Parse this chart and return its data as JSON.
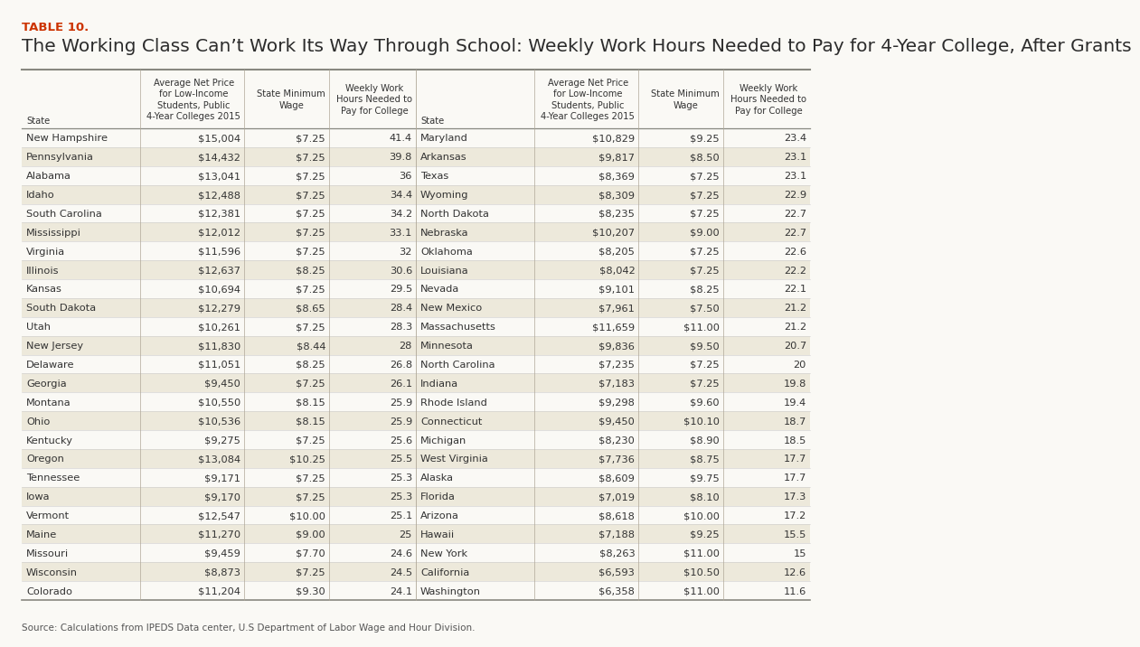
{
  "table_label": "TABLE 10.",
  "title": "The Working Class Can’t Work Its Way Through School: Weekly Work Hours Needed to Pay for 4-Year College, After Grants",
  "source": "Source: Calculations from IPEDS Data center, U.S Department of Labor Wage and Hour Division.",
  "col_headers": [
    "State",
    "Average Net Price\nfor Low-Income\nStudents, Public\n4-Year Colleges 2015",
    "State Minimum\nWage",
    "Weekly Work\nHours Needed to\nPay for College"
  ],
  "left_data": [
    [
      "New Hampshire",
      "$15,004",
      "$7.25",
      "41.4"
    ],
    [
      "Pennsylvania",
      "$14,432",
      "$7.25",
      "39.8"
    ],
    [
      "Alabama",
      "$13,041",
      "$7.25",
      "36"
    ],
    [
      "Idaho",
      "$12,488",
      "$7.25",
      "34.4"
    ],
    [
      "South Carolina",
      "$12,381",
      "$7.25",
      "34.2"
    ],
    [
      "Mississippi",
      "$12,012",
      "$7.25",
      "33.1"
    ],
    [
      "Virginia",
      "$11,596",
      "$7.25",
      "32"
    ],
    [
      "Illinois",
      "$12,637",
      "$8.25",
      "30.6"
    ],
    [
      "Kansas",
      "$10,694",
      "$7.25",
      "29.5"
    ],
    [
      "South Dakota",
      "$12,279",
      "$8.65",
      "28.4"
    ],
    [
      "Utah",
      "$10,261",
      "$7.25",
      "28.3"
    ],
    [
      "New Jersey",
      "$11,830",
      "$8.44",
      "28"
    ],
    [
      "Delaware",
      "$11,051",
      "$8.25",
      "26.8"
    ],
    [
      "Georgia",
      "$9,450",
      "$7.25",
      "26.1"
    ],
    [
      "Montana",
      "$10,550",
      "$8.15",
      "25.9"
    ],
    [
      "Ohio",
      "$10,536",
      "$8.15",
      "25.9"
    ],
    [
      "Kentucky",
      "$9,275",
      "$7.25",
      "25.6"
    ],
    [
      "Oregon",
      "$13,084",
      "$10.25",
      "25.5"
    ],
    [
      "Tennessee",
      "$9,171",
      "$7.25",
      "25.3"
    ],
    [
      "Iowa",
      "$9,170",
      "$7.25",
      "25.3"
    ],
    [
      "Vermont",
      "$12,547",
      "$10.00",
      "25.1"
    ],
    [
      "Maine",
      "$11,270",
      "$9.00",
      "25"
    ],
    [
      "Missouri",
      "$9,459",
      "$7.70",
      "24.6"
    ],
    [
      "Wisconsin",
      "$8,873",
      "$7.25",
      "24.5"
    ],
    [
      "Colorado",
      "$11,204",
      "$9.30",
      "24.1"
    ]
  ],
  "right_data": [
    [
      "Maryland",
      "$10,829",
      "$9.25",
      "23.4"
    ],
    [
      "Arkansas",
      "$9,817",
      "$8.50",
      "23.1"
    ],
    [
      "Texas",
      "$8,369",
      "$7.25",
      "23.1"
    ],
    [
      "Wyoming",
      "$8,309",
      "$7.25",
      "22.9"
    ],
    [
      "North Dakota",
      "$8,235",
      "$7.25",
      "22.7"
    ],
    [
      "Nebraska",
      "$10,207",
      "$9.00",
      "22.7"
    ],
    [
      "Oklahoma",
      "$8,205",
      "$7.25",
      "22.6"
    ],
    [
      "Louisiana",
      "$8,042",
      "$7.25",
      "22.2"
    ],
    [
      "Nevada",
      "$9,101",
      "$8.25",
      "22.1"
    ],
    [
      "New Mexico",
      "$7,961",
      "$7.50",
      "21.2"
    ],
    [
      "Massachusetts",
      "$11,659",
      "$11.00",
      "21.2"
    ],
    [
      "Minnesota",
      "$9,836",
      "$9.50",
      "20.7"
    ],
    [
      "North Carolina",
      "$7,235",
      "$7.25",
      "20"
    ],
    [
      "Indiana",
      "$7,183",
      "$7.25",
      "19.8"
    ],
    [
      "Rhode Island",
      "$9,298",
      "$9.60",
      "19.4"
    ],
    [
      "Connecticut",
      "$9,450",
      "$10.10",
      "18.7"
    ],
    [
      "Michigan",
      "$8,230",
      "$8.90",
      "18.5"
    ],
    [
      "West Virginia",
      "$7,736",
      "$8.75",
      "17.7"
    ],
    [
      "Alaska",
      "$8,609",
      "$9.75",
      "17.7"
    ],
    [
      "Florida",
      "$7,019",
      "$8.10",
      "17.3"
    ],
    [
      "Arizona",
      "$8,618",
      "$10.00",
      "17.2"
    ],
    [
      "Hawaii",
      "$7,188",
      "$9.25",
      "15.5"
    ],
    [
      "New York",
      "$8,263",
      "$11.00",
      "15"
    ],
    [
      "California",
      "$6,593",
      "$10.50",
      "12.6"
    ],
    [
      "Washington",
      "$6,358",
      "$11.00",
      "11.6"
    ]
  ],
  "background_color": "#faf9f5",
  "row_colors": [
    "#faf9f5",
    "#ede9db"
  ],
  "label_color": "#cc3300",
  "title_color": "#2c2c2c",
  "text_color": "#333333",
  "grid_color": "#b0a898",
  "title_fontsize": 14.5,
  "label_fontsize": 9.5,
  "header_fontsize": 7.2,
  "data_fontsize": 8.2,
  "source_fontsize": 7.5
}
